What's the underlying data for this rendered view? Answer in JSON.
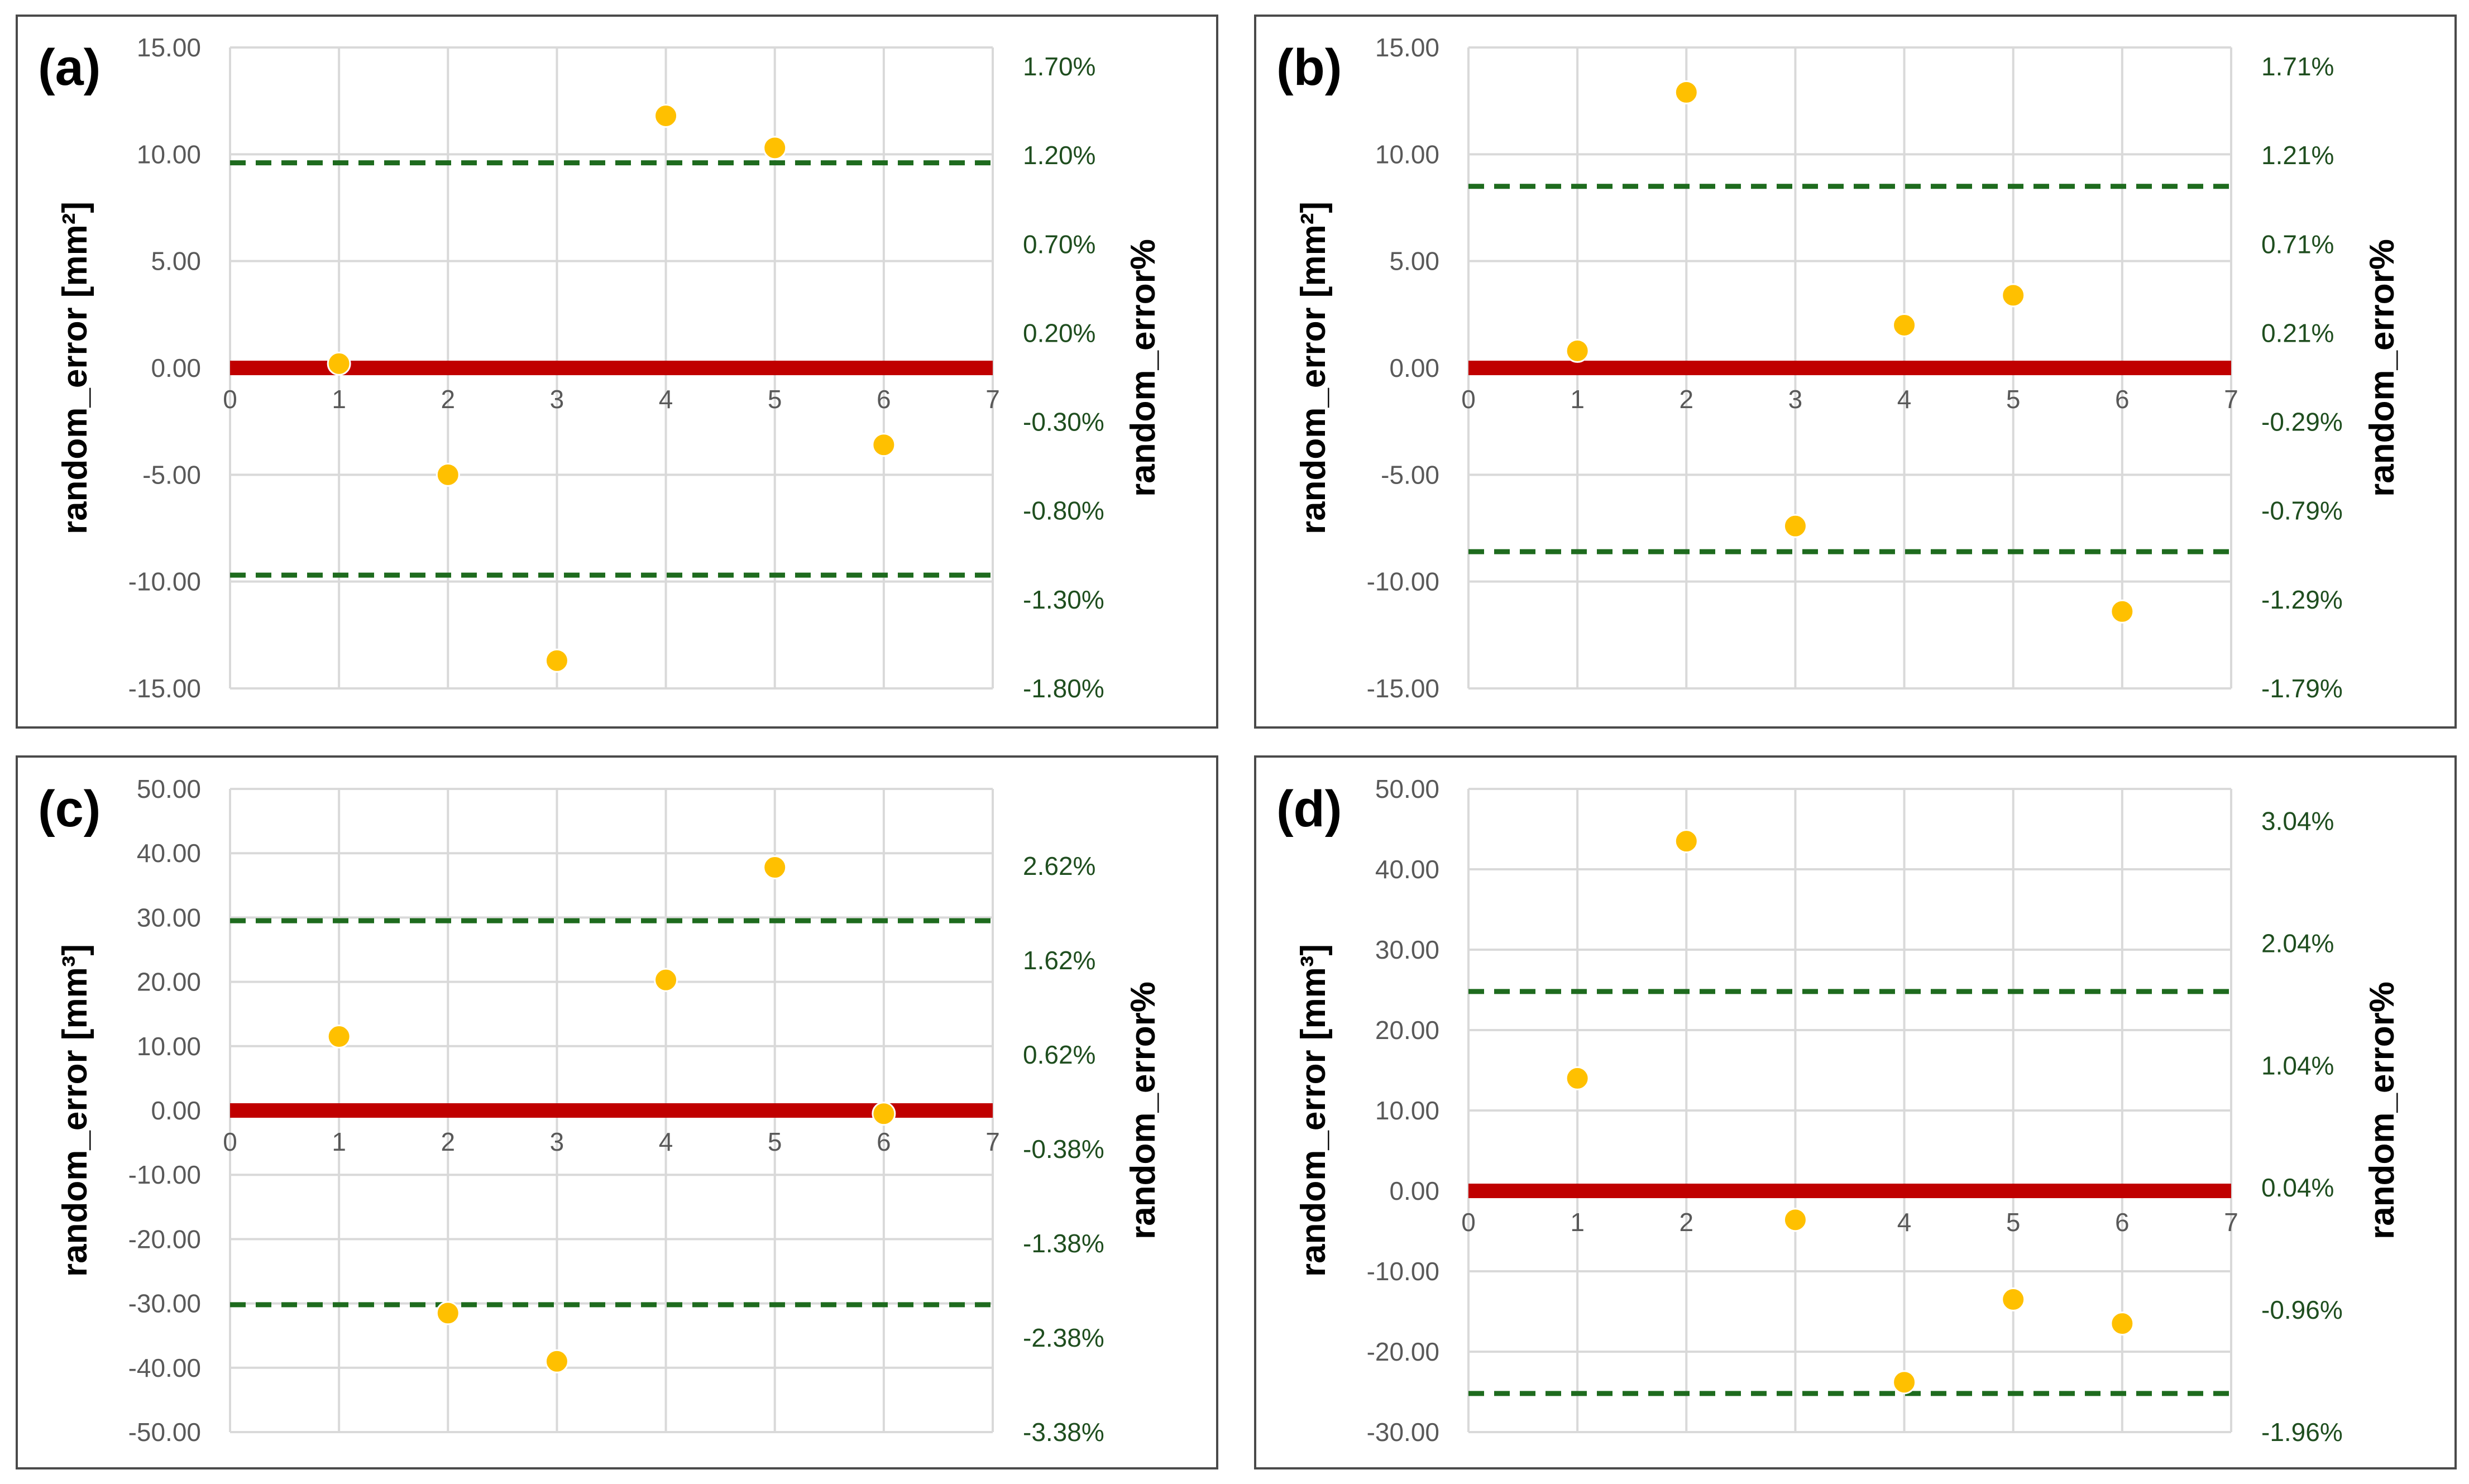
{
  "chart_data": [
    {
      "type": "scatter",
      "panel_label": "(a)",
      "ylabel": "random_error [mm²]",
      "y2label": "random_error%",
      "ylim": [
        -15,
        15
      ],
      "y_ticks": [
        "15.00",
        "10.00",
        "5.00",
        "0.00",
        "-5.00",
        "-10.00",
        "-15.00"
      ],
      "y2_ticks": [
        "1.70%",
        "1.20%",
        "0.70%",
        "0.20%",
        "-0.30%",
        "-0.80%",
        "-1.30%",
        "-1.80%"
      ],
      "xlim": [
        0,
        7
      ],
      "x_ticks": [
        "0",
        "1",
        "2",
        "3",
        "4",
        "5",
        "6",
        "7"
      ],
      "points": [
        {
          "x": 1,
          "y": 0.2
        },
        {
          "x": 2,
          "y": -5.0
        },
        {
          "x": 3,
          "y": -13.7
        },
        {
          "x": 4,
          "y": 11.8
        },
        {
          "x": 5,
          "y": 10.3
        },
        {
          "x": 6,
          "y": -3.6
        }
      ],
      "zero_line": 0,
      "upper_limit": 9.6,
      "lower_limit": -9.7,
      "line_colors": {
        "zero": "#c00000",
        "limits": "#1e6b1e",
        "points": "#ffc000"
      }
    },
    {
      "type": "scatter",
      "panel_label": "(b)",
      "ylabel": "random_error [mm²]",
      "y2label": "random_error%",
      "ylim": [
        -15,
        15
      ],
      "y_ticks": [
        "15.00",
        "10.00",
        "5.00",
        "0.00",
        "-5.00",
        "-10.00",
        "-15.00"
      ],
      "y2_ticks": [
        "1.71%",
        "1.21%",
        "0.71%",
        "0.21%",
        "-0.29%",
        "-0.79%",
        "-1.29%",
        "-1.79%"
      ],
      "xlim": [
        0,
        7
      ],
      "x_ticks": [
        "0",
        "1",
        "2",
        "3",
        "4",
        "5",
        "6",
        "7"
      ],
      "points": [
        {
          "x": 1,
          "y": 0.8
        },
        {
          "x": 2,
          "y": 12.9
        },
        {
          "x": 3,
          "y": -7.4
        },
        {
          "x": 4,
          "y": 2.0
        },
        {
          "x": 5,
          "y": 3.4
        },
        {
          "x": 6,
          "y": -11.4
        }
      ],
      "zero_line": 0,
      "upper_limit": 8.5,
      "lower_limit": -8.6,
      "line_colors": {
        "zero": "#c00000",
        "limits": "#1e6b1e",
        "points": "#ffc000"
      }
    },
    {
      "type": "scatter",
      "panel_label": "(c)",
      "ylabel": "random_error [mm³]",
      "y2label": "random_error%",
      "ylim": [
        -50,
        50
      ],
      "y_ticks": [
        "50.00",
        "40.00",
        "30.00",
        "20.00",
        "10.00",
        "0.00",
        "-10.00",
        "-20.00",
        "-30.00",
        "-40.00",
        "-50.00"
      ],
      "y2_ticks": [
        "2.62%",
        "1.62%",
        "0.62%",
        "-0.38%",
        "-1.38%",
        "-2.38%",
        "-3.38%"
      ],
      "xlim": [
        0,
        7
      ],
      "x_ticks": [
        "0",
        "1",
        "2",
        "3",
        "4",
        "5",
        "6",
        "7"
      ],
      "points": [
        {
          "x": 1,
          "y": 11.5
        },
        {
          "x": 2,
          "y": -31.5
        },
        {
          "x": 3,
          "y": -39.0
        },
        {
          "x": 4,
          "y": 20.3
        },
        {
          "x": 5,
          "y": 37.8
        },
        {
          "x": 6,
          "y": -0.5
        }
      ],
      "zero_line": 0,
      "upper_limit": 29.5,
      "lower_limit": -30.2,
      "line_colors": {
        "zero": "#c00000",
        "limits": "#1e6b1e",
        "points": "#ffc000"
      }
    },
    {
      "type": "scatter",
      "panel_label": "(d)",
      "ylabel": "random_error [mm³]",
      "y2label": "random_error%",
      "ylim": [
        -30,
        50
      ],
      "y_ticks": [
        "50.00",
        "40.00",
        "30.00",
        "20.00",
        "10.00",
        "0.00",
        "-10.00",
        "-20.00",
        "-30.00"
      ],
      "y2_ticks": [
        "3.04%",
        "2.04%",
        "1.04%",
        "0.04%",
        "-0.96%",
        "-1.96%"
      ],
      "xlim": [
        0,
        7
      ],
      "x_ticks": [
        "0",
        "1",
        "2",
        "3",
        "4",
        "5",
        "6",
        "7"
      ],
      "points": [
        {
          "x": 1,
          "y": 14.0
        },
        {
          "x": 2,
          "y": 43.5
        },
        {
          "x": 3,
          "y": -3.6
        },
        {
          "x": 4,
          "y": -23.8
        },
        {
          "x": 5,
          "y": -13.5
        },
        {
          "x": 6,
          "y": -16.5
        }
      ],
      "zero_line": 0,
      "upper_limit": 24.8,
      "lower_limit": -25.2,
      "line_colors": {
        "zero": "#c00000",
        "limits": "#1e6b1e",
        "points": "#ffc000"
      }
    }
  ]
}
